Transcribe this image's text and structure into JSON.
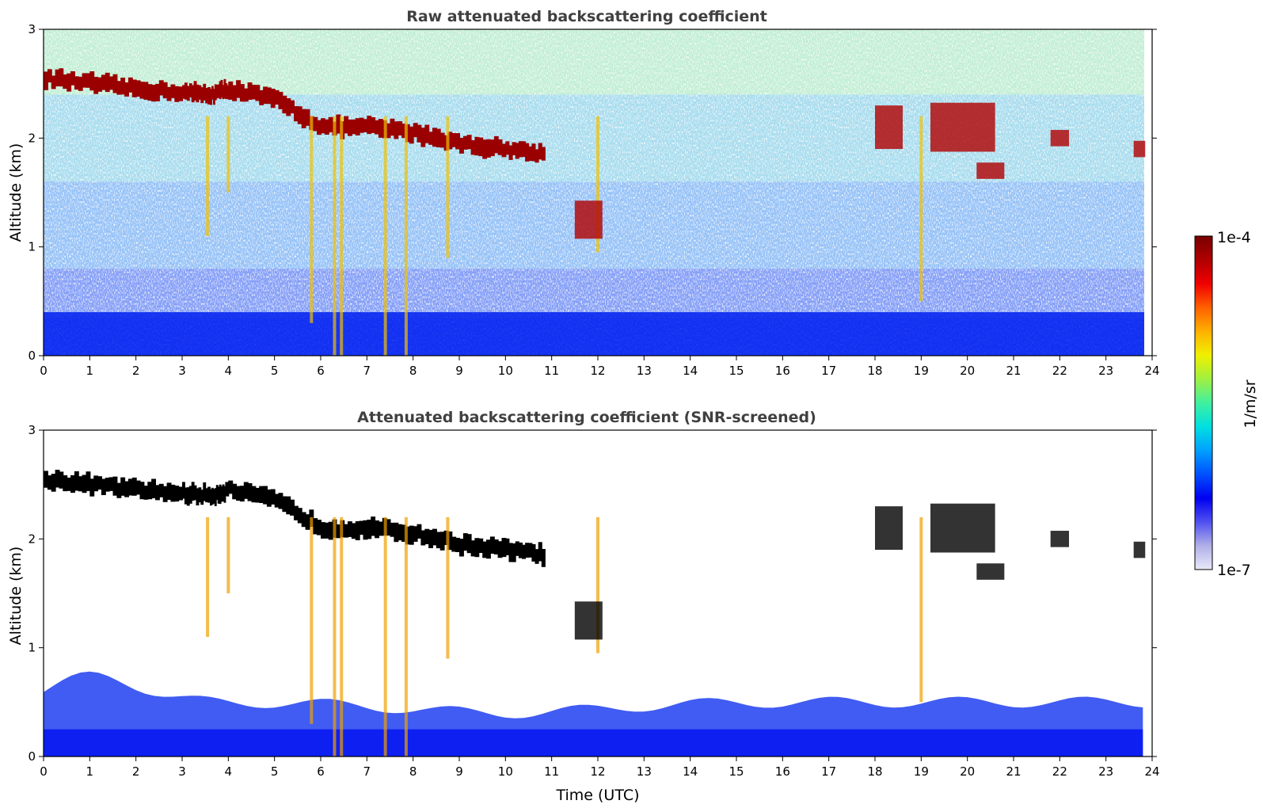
{
  "chart_data": [
    {
      "type": "heatmap",
      "title": "Raw attenuated backscattering coefficient",
      "xlabel": "",
      "ylabel": "Altitude (km)",
      "xlim": [
        0,
        24
      ],
      "ylim": [
        0,
        3
      ],
      "xticks": [
        "0",
        "1",
        "2",
        "3",
        "4",
        "5",
        "6",
        "7",
        "8",
        "9",
        "10",
        "11",
        "12",
        "13",
        "14",
        "15",
        "16",
        "17",
        "18",
        "19",
        "20",
        "21",
        "22",
        "23",
        "24"
      ],
      "yticks": [
        "0",
        "1",
        "2",
        "3"
      ],
      "features": {
        "cloud_layer": [
          {
            "time": 0.0,
            "alt": 2.55
          },
          {
            "time": 1.0,
            "alt": 2.5
          },
          {
            "time": 2.0,
            "alt": 2.45
          },
          {
            "time": 3.0,
            "alt": 2.42
          },
          {
            "time": 3.6,
            "alt": 2.4
          },
          {
            "time": 4.0,
            "alt": 2.45
          },
          {
            "time": 5.0,
            "alt": 2.35
          },
          {
            "time": 6.0,
            "alt": 2.1
          },
          {
            "time": 7.0,
            "alt": 2.1
          },
          {
            "time": 8.0,
            "alt": 2.05
          },
          {
            "time": 9.0,
            "alt": 1.95
          },
          {
            "time": 10.0,
            "alt": 1.9
          },
          {
            "time": 10.85,
            "alt": 1.85
          }
        ],
        "boundary_layer_top_km": 0.45
      }
    },
    {
      "type": "heatmap",
      "title": "Attenuated backscattering coefficient (SNR-screened)",
      "xlabel": "Time (UTC)",
      "ylabel": "Altitude (km)",
      "xlim": [
        0,
        24
      ],
      "ylim": [
        0,
        3
      ],
      "xticks": [
        "0",
        "1",
        "2",
        "3",
        "4",
        "5",
        "6",
        "7",
        "8",
        "9",
        "10",
        "11",
        "12",
        "13",
        "14",
        "15",
        "16",
        "17",
        "18",
        "19",
        "20",
        "21",
        "22",
        "23",
        "24"
      ],
      "yticks": [
        "0",
        "1",
        "2",
        "3"
      ],
      "features": {
        "saturated_color": "#000000",
        "screened_color": "#ffffff"
      }
    }
  ],
  "colorbar": {
    "label": "1/m/sr",
    "max_label": "1e-4",
    "min_label": "1e-7",
    "scale": "log",
    "colormap": [
      "#e8e8f8",
      "#b0b0e8",
      "#5050f0",
      "#0000f0",
      "#0050ff",
      "#00a0ff",
      "#00e0e0",
      "#40f0a0",
      "#a0f040",
      "#f0f000",
      "#ffb000",
      "#ff6000",
      "#f00000",
      "#b00000",
      "#780000"
    ]
  }
}
